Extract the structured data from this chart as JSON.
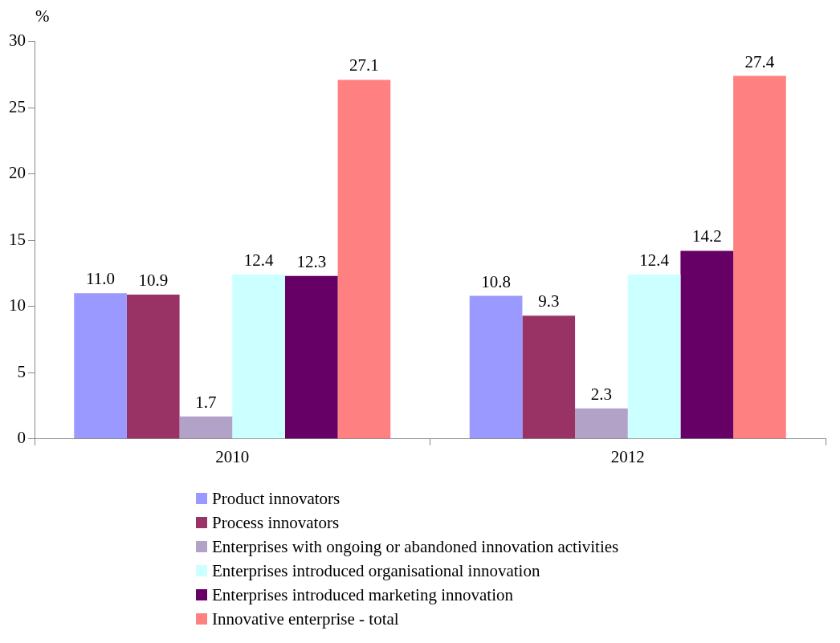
{
  "chart_data": {
    "type": "bar",
    "ylabel": "%",
    "categories": [
      "2010",
      "2012"
    ],
    "series": [
      {
        "name": "Product innovators",
        "color": "#9999ff",
        "values": [
          11.0,
          10.8
        ],
        "value_labels": [
          "11.0",
          "10.8"
        ]
      },
      {
        "name": "Process innovators",
        "color": "#993366",
        "values": [
          10.9,
          9.3
        ],
        "value_labels": [
          "10.9",
          "9.3"
        ]
      },
      {
        "name": "Enterprises with ongoing or abandoned innovation activities",
        "color": "#b3a2c7",
        "values": [
          1.7,
          2.3
        ],
        "value_labels": [
          "1.7",
          "2.3"
        ]
      },
      {
        "name": "Enterprises introduced organisational innovation",
        "color": "#ccffff",
        "values": [
          12.4,
          12.4
        ],
        "value_labels": [
          "12.4",
          "12.4"
        ]
      },
      {
        "name": "Enterprises introduced marketing innovation",
        "color": "#660066",
        "values": [
          12.3,
          14.2
        ],
        "value_labels": [
          "12.3",
          "14.2"
        ]
      },
      {
        "name": "Innovative enterprise - total",
        "color": "#ff8080",
        "values": [
          27.1,
          27.4
        ],
        "value_labels": [
          "27.1",
          "27.4"
        ]
      }
    ],
    "ylim": [
      0,
      30
    ],
    "yticks": [
      0,
      5,
      10,
      15,
      20,
      25,
      30
    ],
    "grid": false,
    "legend": "bottom"
  }
}
